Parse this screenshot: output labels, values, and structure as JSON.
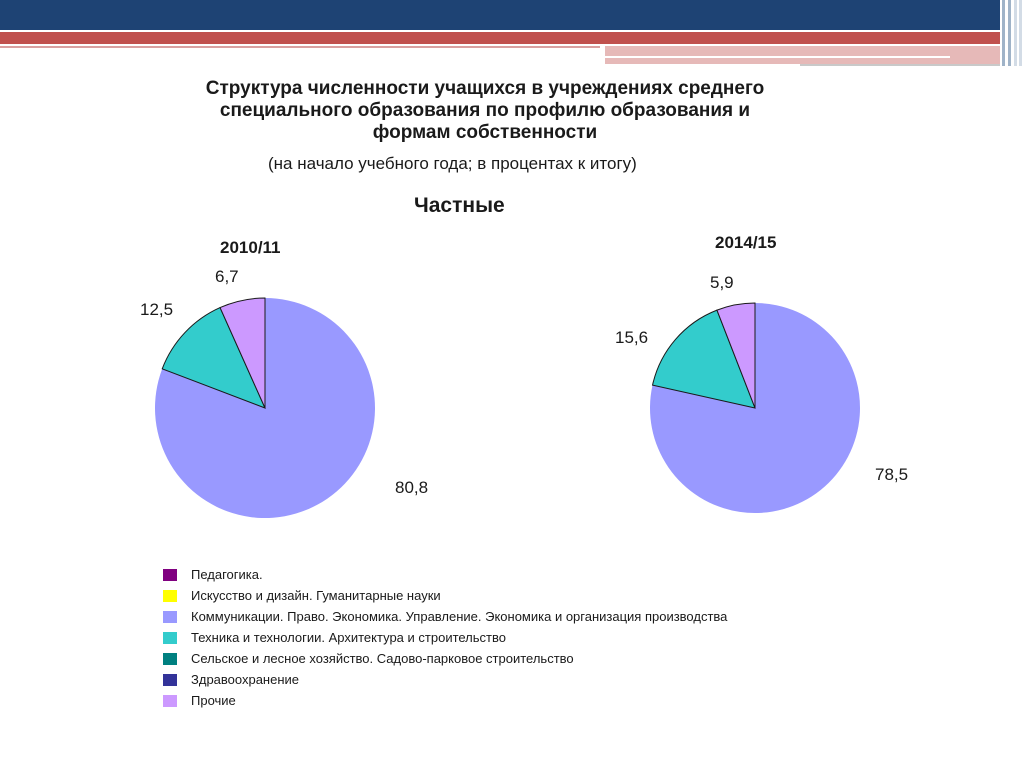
{
  "title_lines": [
    "Структура численности учащихся в учреждениях среднего",
    "специального образования по профилю образования и",
    "формам собственности"
  ],
  "subtitle": "(на начало учебного года; в процентах к итогу)",
  "heading": "Частные",
  "chart_data": [
    {
      "type": "pie",
      "title": "2010/11",
      "slices": [
        {
          "category": "Коммуникации. Право. Экономика. Управление. Экономика и организация производства",
          "value": 80.8,
          "label": "80,8",
          "color": "#9999ff"
        },
        {
          "category": "Техника и технологии. Архитектура и строительство",
          "value": 12.5,
          "label": "12,5",
          "color": "#33cccc"
        },
        {
          "category": "Прочие",
          "value": 6.7,
          "label": "6,7",
          "color": "#cc99ff"
        }
      ]
    },
    {
      "type": "pie",
      "title": "2014/15",
      "slices": [
        {
          "category": "Коммуникации. Право. Экономика. Управление. Экономика и организация производства",
          "value": 78.5,
          "label": "78,5",
          "color": "#9999ff"
        },
        {
          "category": "Техника и технологии. Архитектура и строительство",
          "value": 15.6,
          "label": "15,6",
          "color": "#33cccc"
        },
        {
          "category": "Прочие",
          "value": 5.9,
          "label": "5,9",
          "color": "#cc99ff"
        }
      ]
    }
  ],
  "legend": [
    {
      "label": "Педагогика.",
      "color": "#800080"
    },
    {
      "label": "Искусство и дизайн. Гуманитарные науки",
      "color": "#ffff00"
    },
    {
      "label": "Коммуникации. Право. Экономика. Управление. Экономика и организация производства",
      "color": "#9999ff"
    },
    {
      "label": "Техника и технологии. Архитектура и строительство",
      "color": "#33cccc"
    },
    {
      "label": "Сельское и лесное хозяйство. Садово-парковое строительство",
      "color": "#008080"
    },
    {
      "label": "Здравоохранение",
      "color": "#333399"
    },
    {
      "label": "Прочие",
      "color": "#cc99ff"
    }
  ]
}
